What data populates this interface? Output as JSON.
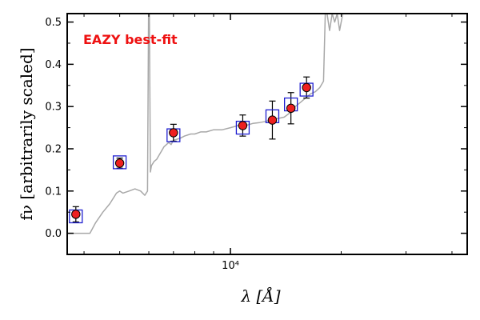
{
  "chart_data": {
    "type": "scatter",
    "title": "",
    "xlabel": "λ [Å]",
    "ylabel": "fν [arbitrarily scaled]",
    "xscale": "log",
    "xlim": [
      3600,
      44000
    ],
    "ylim": [
      -0.05,
      0.52
    ],
    "x_ticks": [
      {
        "value": 10000,
        "label": "10⁴"
      }
    ],
    "y_ticks": [
      {
        "value": 0.0,
        "label": "0.0"
      },
      {
        "value": 0.1,
        "label": "0.1"
      },
      {
        "value": 0.2,
        "label": "0.2"
      },
      {
        "value": 0.3,
        "label": "0.3"
      },
      {
        "value": 0.4,
        "label": "0.4"
      },
      {
        "value": 0.5,
        "label": "0.5"
      }
    ],
    "annotation": {
      "text": "EAZY best-fit",
      "color": "#ee1111",
      "placement": "top-left"
    },
    "colors": {
      "sed": "#a8a8a8",
      "model_box": "#1f1fd0",
      "point_fill": "#ee2020",
      "axis": "#000000"
    },
    "series": [
      {
        "name": "best-fit SED",
        "kind": "line",
        "x": [
          3600,
          4150,
          4300,
          4500,
          4700,
          4900,
          5000,
          5100,
          5300,
          5500,
          5700,
          5850,
          5950,
          5990,
          6020,
          6060,
          6100,
          6200,
          6300,
          6400,
          6500,
          6600,
          6700,
          6800,
          6900,
          7000,
          7300,
          7500,
          7800,
          8000,
          8300,
          8600,
          9000,
          9500,
          10000,
          10500,
          11000,
          11500,
          12000,
          12500,
          13000,
          13500,
          14000,
          14500,
          15000,
          15500,
          16000,
          16500,
          17000,
          17500,
          17900,
          18100,
          18300,
          18600,
          18900,
          19200,
          19500,
          19800,
          20200
        ],
        "y": [
          0.0,
          0.0,
          0.025,
          0.05,
          0.07,
          0.095,
          0.1,
          0.095,
          0.1,
          0.105,
          0.1,
          0.09,
          0.1,
          0.52,
          0.52,
          0.145,
          0.16,
          0.17,
          0.175,
          0.185,
          0.195,
          0.205,
          0.21,
          0.215,
          0.21,
          0.22,
          0.225,
          0.23,
          0.235,
          0.235,
          0.24,
          0.24,
          0.245,
          0.245,
          0.25,
          0.255,
          0.255,
          0.26,
          0.262,
          0.265,
          0.27,
          0.272,
          0.275,
          0.285,
          0.3,
          0.31,
          0.32,
          0.33,
          0.335,
          0.345,
          0.36,
          0.52,
          0.52,
          0.48,
          0.52,
          0.5,
          0.52,
          0.48,
          0.52
        ]
      },
      {
        "name": "model photometry",
        "kind": "square",
        "x": [
          3800,
          5000,
          7000,
          10800,
          13000,
          14600,
          16100
        ],
        "y": [
          0.04,
          0.168,
          0.232,
          0.25,
          0.277,
          0.305,
          0.34
        ]
      },
      {
        "name": "observed photometry",
        "kind": "errorbar",
        "x": [
          3800,
          5000,
          7000,
          10800,
          13000,
          14600,
          16100
        ],
        "y": [
          0.045,
          0.166,
          0.238,
          0.255,
          0.268,
          0.296,
          0.345
        ],
        "yerr": [
          0.018,
          0.012,
          0.02,
          0.025,
          0.045,
          0.037,
          0.025
        ]
      }
    ]
  }
}
